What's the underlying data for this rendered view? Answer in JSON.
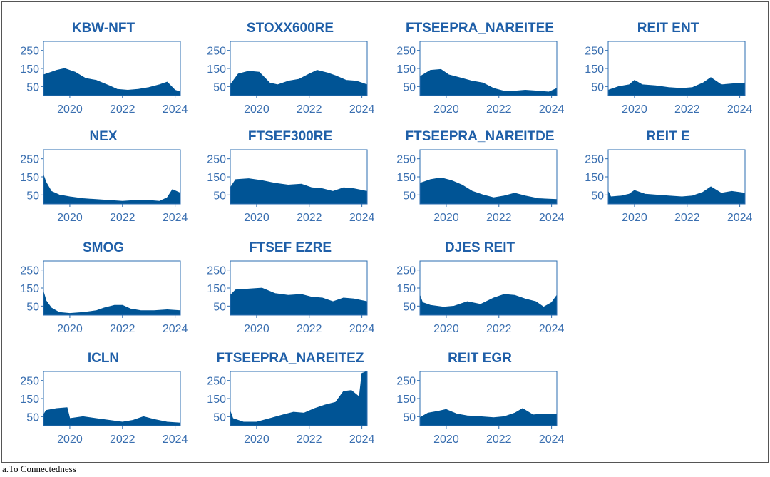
{
  "caption": "a.To Connectedness",
  "colors": {
    "fill": "#005495",
    "title": "#1f5fa8",
    "axis": "#2b6cb0",
    "tick_text": "#3a6fb0"
  },
  "chart_data": [
    {
      "type": "area",
      "title": "KBW-NFT",
      "yticks": [
        50,
        150,
        250
      ],
      "xticks": [
        2020,
        2022,
        2024
      ],
      "xlim": [
        2019,
        2024.2
      ],
      "ylim": [
        0,
        300
      ],
      "x": [
        2019,
        2019.5,
        2019.8,
        2020.2,
        2020.6,
        2021,
        2021.5,
        2021.8,
        2022.2,
        2022.6,
        2023,
        2023.4,
        2023.7,
        2024,
        2024.2
      ],
      "y": [
        115,
        140,
        150,
        130,
        95,
        85,
        55,
        35,
        30,
        35,
        45,
        60,
        75,
        30,
        20
      ]
    },
    {
      "type": "area",
      "title": "STOXX600RE",
      "yticks": [
        50,
        150,
        250
      ],
      "xticks": [
        2020,
        2022,
        2024
      ],
      "xlim": [
        2019,
        2024.2
      ],
      "ylim": [
        0,
        300
      ],
      "x": [
        2019,
        2019.3,
        2019.7,
        2020.1,
        2020.5,
        2020.8,
        2021.2,
        2021.6,
        2022,
        2022.3,
        2022.7,
        2023,
        2023.4,
        2023.8,
        2024.2
      ],
      "y": [
        60,
        120,
        135,
        130,
        70,
        60,
        80,
        90,
        120,
        140,
        125,
        110,
        85,
        80,
        60
      ]
    },
    {
      "type": "area",
      "title": "FTSEEPRA_NAREITEE",
      "yticks": [
        50,
        150,
        250
      ],
      "xticks": [
        2020,
        2022,
        2024
      ],
      "xlim": [
        2019,
        2024.2
      ],
      "ylim": [
        0,
        300
      ],
      "x": [
        2019,
        2019.4,
        2019.8,
        2020.1,
        2020.5,
        2021,
        2021.4,
        2021.8,
        2022.2,
        2022.6,
        2023,
        2023.5,
        2023.9,
        2024.2
      ],
      "y": [
        105,
        140,
        145,
        115,
        100,
        80,
        70,
        40,
        25,
        25,
        30,
        25,
        20,
        40
      ]
    },
    {
      "type": "area",
      "title": "REIT ENT",
      "yticks": [
        50,
        150,
        250
      ],
      "xticks": [
        2020,
        2022,
        2024
      ],
      "xlim": [
        2019,
        2024.2
      ],
      "ylim": [
        0,
        300
      ],
      "x": [
        2019,
        2019.4,
        2019.8,
        2020,
        2020.3,
        2020.8,
        2021.3,
        2021.8,
        2022.2,
        2022.6,
        2022.9,
        2023.3,
        2023.7,
        2024.2
      ],
      "y": [
        30,
        50,
        60,
        85,
        60,
        55,
        45,
        40,
        45,
        70,
        100,
        60,
        65,
        70
      ]
    },
    {
      "type": "area",
      "title": "NEX",
      "yticks": [
        50,
        150,
        250
      ],
      "xticks": [
        2020,
        2022,
        2024
      ],
      "xlim": [
        2019,
        2024.2
      ],
      "ylim": [
        0,
        300
      ],
      "x": [
        2019,
        2019.1,
        2019.3,
        2019.6,
        2020,
        2020.5,
        2021,
        2021.5,
        2022,
        2022.5,
        2023,
        2023.4,
        2023.7,
        2023.9,
        2024.2
      ],
      "y": [
        160,
        120,
        70,
        50,
        40,
        30,
        25,
        20,
        15,
        20,
        20,
        15,
        35,
        80,
        60
      ]
    },
    {
      "type": "area",
      "title": "FTSEF300RE",
      "yticks": [
        50,
        150,
        250
      ],
      "xticks": [
        2020,
        2022,
        2024
      ],
      "xlim": [
        2019,
        2024.2
      ],
      "ylim": [
        0,
        300
      ],
      "x": [
        2019,
        2019.2,
        2019.7,
        2020.2,
        2020.7,
        2021.2,
        2021.7,
        2022.1,
        2022.5,
        2022.9,
        2023.3,
        2023.7,
        2024.2
      ],
      "y": [
        90,
        135,
        140,
        130,
        115,
        105,
        110,
        90,
        85,
        70,
        90,
        85,
        70
      ]
    },
    {
      "type": "area",
      "title": "FTSEEPRA_NAREITDE",
      "yticks": [
        50,
        150,
        250
      ],
      "xticks": [
        2020,
        2022,
        2024
      ],
      "xlim": [
        2019,
        2024.2
      ],
      "ylim": [
        0,
        300
      ],
      "x": [
        2019,
        2019.4,
        2019.8,
        2020.2,
        2020.6,
        2021,
        2021.4,
        2021.8,
        2022.2,
        2022.6,
        2023,
        2023.5,
        2024.2
      ],
      "y": [
        115,
        135,
        145,
        130,
        105,
        70,
        50,
        35,
        45,
        60,
        45,
        30,
        25
      ]
    },
    {
      "type": "area",
      "title": "REIT E",
      "yticks": [
        50,
        150,
        250
      ],
      "xticks": [
        2020,
        2022,
        2024
      ],
      "xlim": [
        2019,
        2024.2
      ],
      "ylim": [
        0,
        300
      ],
      "x": [
        2019,
        2019.1,
        2019.5,
        2019.8,
        2020,
        2020.4,
        2020.8,
        2021.3,
        2021.8,
        2022.2,
        2022.6,
        2022.9,
        2023.3,
        2023.7,
        2024.2
      ],
      "y": [
        70,
        40,
        45,
        55,
        75,
        55,
        50,
        45,
        40,
        45,
        65,
        95,
        60,
        70,
        60
      ]
    },
    {
      "type": "area",
      "title": "SMOG",
      "yticks": [
        50,
        150,
        250
      ],
      "xticks": [
        2020,
        2022,
        2024
      ],
      "xlim": [
        2019,
        2024.2
      ],
      "ylim": [
        0,
        300
      ],
      "x": [
        2019,
        2019.1,
        2019.3,
        2019.6,
        2020,
        2020.5,
        2021,
        2021.3,
        2021.7,
        2022,
        2022.3,
        2022.7,
        2023.2,
        2023.7,
        2024.2
      ],
      "y": [
        130,
        80,
        40,
        15,
        10,
        15,
        25,
        40,
        55,
        55,
        35,
        25,
        25,
        30,
        25
      ]
    },
    {
      "type": "area",
      "title": "FTSEF EZRE",
      "yticks": [
        50,
        150,
        250
      ],
      "xticks": [
        2020,
        2022,
        2024
      ],
      "xlim": [
        2019,
        2024.2
      ],
      "ylim": [
        0,
        300
      ],
      "x": [
        2019,
        2019.2,
        2019.7,
        2020.2,
        2020.7,
        2021.2,
        2021.7,
        2022.1,
        2022.5,
        2022.9,
        2023.3,
        2023.7,
        2024.2
      ],
      "y": [
        110,
        140,
        145,
        150,
        120,
        110,
        115,
        100,
        95,
        75,
        95,
        90,
        75
      ]
    },
    {
      "type": "area",
      "title": "DJES REIT",
      "yticks": [
        50,
        150,
        250
      ],
      "xticks": [
        2020,
        2022,
        2024
      ],
      "xlim": [
        2019,
        2024.2
      ],
      "ylim": [
        0,
        300
      ],
      "x": [
        2019,
        2019.1,
        2019.4,
        2019.9,
        2020.3,
        2020.8,
        2021.3,
        2021.8,
        2022.2,
        2022.6,
        2023,
        2023.4,
        2023.7,
        2024,
        2024.2
      ],
      "y": [
        110,
        70,
        55,
        45,
        50,
        75,
        60,
        95,
        115,
        110,
        90,
        75,
        45,
        70,
        110
      ]
    },
    {
      "type": "area",
      "title": "ICLN",
      "yticks": [
        50,
        150,
        250
      ],
      "xticks": [
        2020,
        2022,
        2024
      ],
      "xlim": [
        2019,
        2024.2
      ],
      "ylim": [
        0,
        300
      ],
      "x": [
        2019,
        2019.1,
        2019.5,
        2019.9,
        2020,
        2020.5,
        2021,
        2021.5,
        2022,
        2022.4,
        2022.8,
        2023.2,
        2023.7,
        2024.2
      ],
      "y": [
        60,
        85,
        95,
        100,
        40,
        50,
        40,
        30,
        20,
        30,
        50,
        35,
        20,
        15
      ]
    },
    {
      "type": "area",
      "title": "FTSEEPRA_NAREITEZ",
      "yticks": [
        50,
        150,
        250
      ],
      "xticks": [
        2020,
        2022,
        2024
      ],
      "xlim": [
        2019,
        2024.2
      ],
      "ylim": [
        0,
        300
      ],
      "x": [
        2019,
        2019.1,
        2019.5,
        2020,
        2020.5,
        2021,
        2021.4,
        2021.8,
        2022.2,
        2022.6,
        2023,
        2023.3,
        2023.6,
        2023.9,
        2024,
        2024.2
      ],
      "y": [
        80,
        40,
        20,
        20,
        40,
        60,
        75,
        70,
        95,
        115,
        130,
        190,
        195,
        160,
        290,
        300
      ]
    },
    {
      "type": "area",
      "title": "REIT EGR",
      "yticks": [
        50,
        150,
        250
      ],
      "xticks": [
        2020,
        2022,
        2024
      ],
      "xlim": [
        2019,
        2024.2
      ],
      "ylim": [
        0,
        300
      ],
      "x": [
        2019,
        2019.3,
        2019.7,
        2020,
        2020.4,
        2020.8,
        2021.3,
        2021.8,
        2022.2,
        2022.6,
        2022.9,
        2023.3,
        2023.7,
        2024.2
      ],
      "y": [
        45,
        70,
        80,
        90,
        65,
        55,
        50,
        45,
        50,
        70,
        95,
        60,
        65,
        65
      ]
    }
  ]
}
